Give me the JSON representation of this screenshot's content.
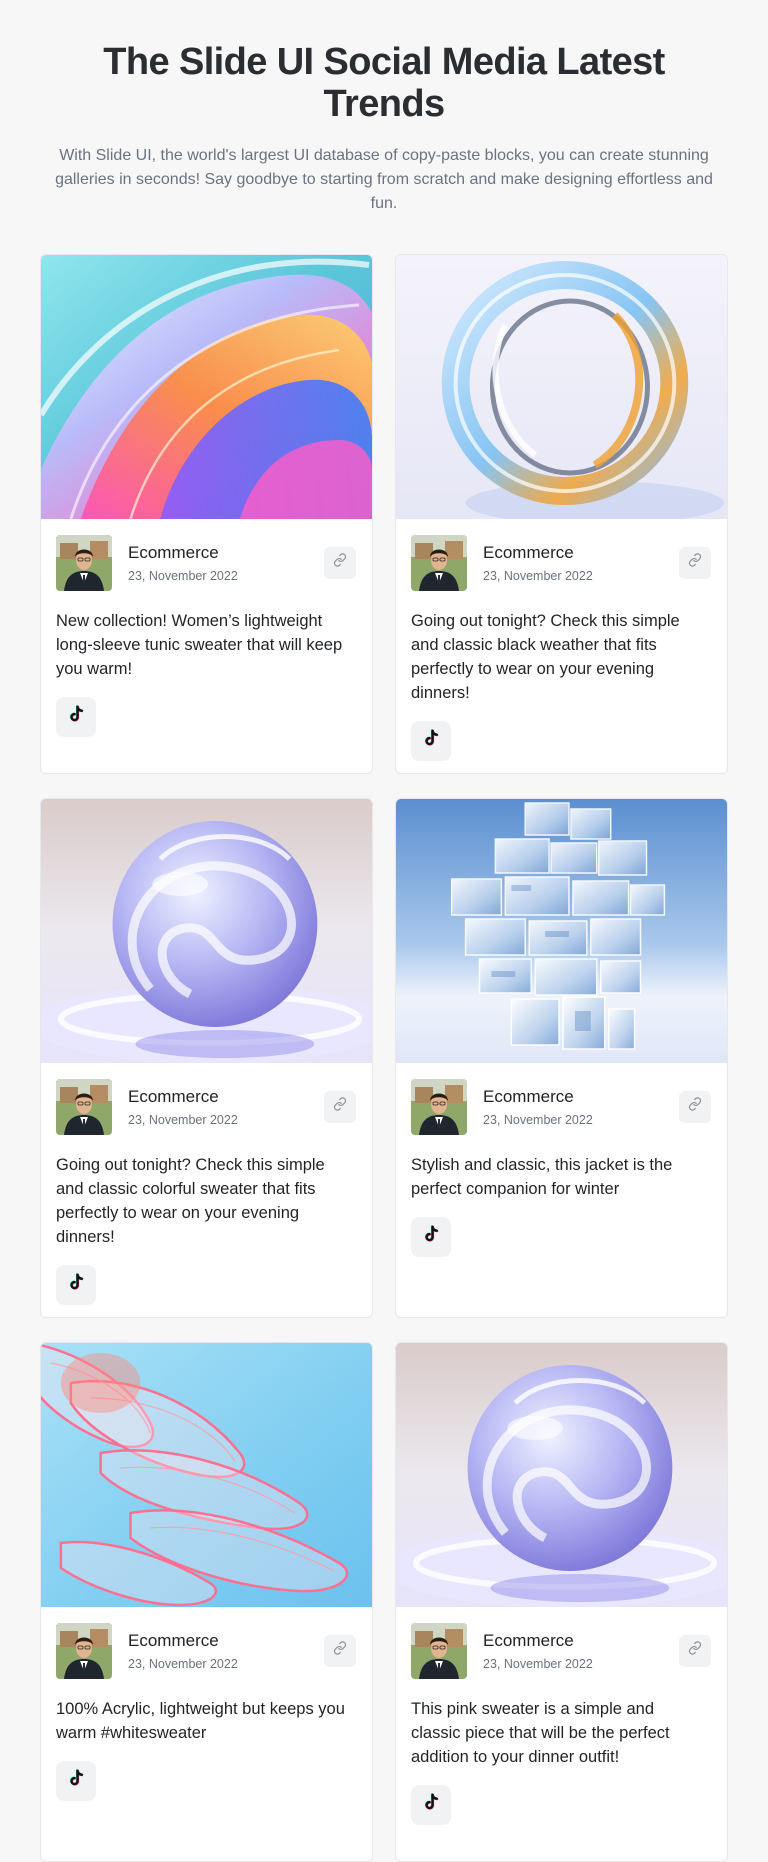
{
  "header": {
    "title": "The Slide UI Social Media Latest Trends",
    "subtitle": "With Slide UI, the world's largest UI database of copy-paste blocks, you can create stunning galleries in seconds! Say goodbye to starting from scratch and make designing effortless and fun."
  },
  "posts": [
    {
      "image": "abstract-swirl",
      "author": "Ecommerce",
      "date": "23, November 2022",
      "caption": "New collection! Women’s lightweight long-sleeve tunic sweater that will keep you warm!",
      "social_icon": "tiktok-icon"
    },
    {
      "image": "glass-ring",
      "author": "Ecommerce",
      "date": "23, November 2022",
      "caption": "Going out tonight? Check this simple and classic black weather that fits perfectly to wear on your evening dinners!",
      "social_icon": "tiktok-icon"
    },
    {
      "image": "glass-sphere",
      "author": "Ecommerce",
      "date": "23, November 2022",
      "caption": "Going out tonight? Check this simple and classic colorful sweater that fits perfectly to wear on your evening dinners!",
      "social_icon": "tiktok-icon"
    },
    {
      "image": "glass-cubes-tower",
      "author": "Ecommerce",
      "date": "23, November 2022",
      "caption": "Stylish and classic, this jacket is the perfect companion for winter",
      "social_icon": "tiktok-icon"
    },
    {
      "image": "pink-glass-layers",
      "author": "Ecommerce",
      "date": "23, November 2022",
      "caption": "100% Acrylic, lightweight but keeps you warm #whitesweater",
      "social_icon": "tiktok-icon"
    },
    {
      "image": "glass-sphere",
      "author": "Ecommerce",
      "date": "23, November 2022",
      "caption": "This pink sweater is a simple and classic piece that will be the perfect addition to your dinner outfit!",
      "social_icon": "tiktok-icon"
    }
  ],
  "colors": {
    "background": "#f7f7f8",
    "card_border": "#e6e7ea",
    "icon_button_bg": "#f1f2f4",
    "muted_text": "#6b7280"
  }
}
